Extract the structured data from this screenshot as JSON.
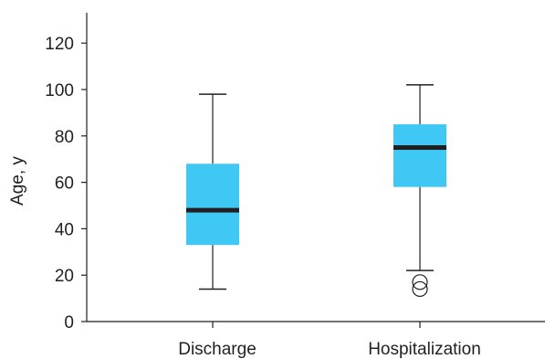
{
  "chart_data": {
    "type": "box",
    "title": "",
    "xlabel": "",
    "ylabel": "Age, y",
    "ylim": [
      0,
      135
    ],
    "yticks": [
      0,
      20,
      40,
      60,
      80,
      100,
      120
    ],
    "grid": false,
    "categories": [
      "Discharge",
      "Hospitalization"
    ],
    "boxes": [
      {
        "category": "Discharge",
        "whisker_low": 14,
        "q1": 33,
        "median": 48,
        "q3": 68,
        "whisker_high": 98,
        "outliers": []
      },
      {
        "category": "Hospitalization",
        "whisker_low": 22,
        "q1": 58,
        "median": 75,
        "q3": 85,
        "whisker_high": 102,
        "outliers": [
          17,
          14
        ]
      }
    ],
    "colors": {
      "box_fill": "#40c8f4",
      "median_line": "#231f20",
      "axis": "#231f20"
    }
  }
}
